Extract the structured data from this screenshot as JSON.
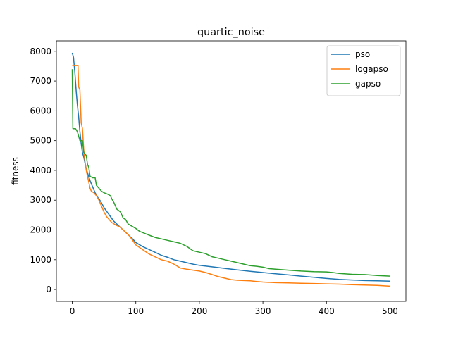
{
  "chart_data": {
    "type": "line",
    "title": "quartic_noise",
    "xlabel": "",
    "ylabel": "fitness",
    "xlim": [
      -25,
      525
    ],
    "ylim": [
      -400,
      8350
    ],
    "xticks": [
      0,
      100,
      200,
      300,
      400,
      500
    ],
    "yticks": [
      0,
      1000,
      2000,
      3000,
      4000,
      5000,
      6000,
      7000,
      8000
    ],
    "grid": false,
    "legend_position": "top-right",
    "series": [
      {
        "name": "pso",
        "color": "#1f77b4",
        "points": [
          [
            0,
            7950
          ],
          [
            2,
            7800
          ],
          [
            4,
            7300
          ],
          [
            6,
            6700
          ],
          [
            8,
            6200
          ],
          [
            10,
            5800
          ],
          [
            12,
            5300
          ],
          [
            14,
            4900
          ],
          [
            16,
            4600
          ],
          [
            18,
            4450
          ],
          [
            20,
            4250
          ],
          [
            22,
            4050
          ],
          [
            25,
            3850
          ],
          [
            28,
            3650
          ],
          [
            32,
            3450
          ],
          [
            36,
            3250
          ],
          [
            40,
            3100
          ],
          [
            45,
            2950
          ],
          [
            50,
            2750
          ],
          [
            55,
            2600
          ],
          [
            60,
            2450
          ],
          [
            65,
            2300
          ],
          [
            70,
            2200
          ],
          [
            75,
            2100
          ],
          [
            80,
            2000
          ],
          [
            85,
            1900
          ],
          [
            90,
            1800
          ],
          [
            95,
            1700
          ],
          [
            100,
            1580
          ],
          [
            110,
            1450
          ],
          [
            120,
            1350
          ],
          [
            130,
            1250
          ],
          [
            140,
            1150
          ],
          [
            150,
            1080
          ],
          [
            160,
            1000
          ],
          [
            170,
            950
          ],
          [
            180,
            900
          ],
          [
            190,
            850
          ],
          [
            200,
            810
          ],
          [
            220,
            760
          ],
          [
            240,
            710
          ],
          [
            260,
            660
          ],
          [
            280,
            610
          ],
          [
            300,
            570
          ],
          [
            320,
            530
          ],
          [
            340,
            490
          ],
          [
            360,
            450
          ],
          [
            380,
            410
          ],
          [
            400,
            370
          ],
          [
            420,
            340
          ],
          [
            440,
            320
          ],
          [
            460,
            300
          ],
          [
            480,
            290
          ],
          [
            500,
            280
          ]
        ]
      },
      {
        "name": "logapso",
        "color": "#ff7f0e",
        "points": [
          [
            0,
            7520
          ],
          [
            4,
            7520
          ],
          [
            9,
            7520
          ],
          [
            10,
            6800
          ],
          [
            12,
            6700
          ],
          [
            14,
            5600
          ],
          [
            16,
            5400
          ],
          [
            18,
            4700
          ],
          [
            20,
            4300
          ],
          [
            22,
            4000
          ],
          [
            24,
            3800
          ],
          [
            26,
            3600
          ],
          [
            28,
            3400
          ],
          [
            30,
            3300
          ],
          [
            34,
            3250
          ],
          [
            38,
            3150
          ],
          [
            42,
            3000
          ],
          [
            46,
            2800
          ],
          [
            50,
            2600
          ],
          [
            54,
            2450
          ],
          [
            58,
            2350
          ],
          [
            62,
            2250
          ],
          [
            66,
            2200
          ],
          [
            70,
            2150
          ],
          [
            75,
            2100
          ],
          [
            80,
            2000
          ],
          [
            85,
            1900
          ],
          [
            90,
            1800
          ],
          [
            95,
            1650
          ],
          [
            100,
            1500
          ],
          [
            110,
            1350
          ],
          [
            120,
            1200
          ],
          [
            130,
            1100
          ],
          [
            140,
            1000
          ],
          [
            150,
            950
          ],
          [
            160,
            850
          ],
          [
            170,
            720
          ],
          [
            180,
            680
          ],
          [
            190,
            650
          ],
          [
            200,
            620
          ],
          [
            210,
            570
          ],
          [
            220,
            500
          ],
          [
            230,
            430
          ],
          [
            240,
            380
          ],
          [
            250,
            330
          ],
          [
            260,
            310
          ],
          [
            270,
            300
          ],
          [
            280,
            290
          ],
          [
            290,
            270
          ],
          [
            300,
            250
          ],
          [
            320,
            230
          ],
          [
            340,
            220
          ],
          [
            360,
            210
          ],
          [
            380,
            200
          ],
          [
            400,
            190
          ],
          [
            420,
            180
          ],
          [
            440,
            160
          ],
          [
            460,
            150
          ],
          [
            480,
            140
          ],
          [
            500,
            110
          ]
        ]
      },
      {
        "name": "gapso",
        "color": "#2ca02c",
        "points": [
          [
            0,
            7400
          ],
          [
            1,
            5400
          ],
          [
            5,
            5400
          ],
          [
            8,
            5300
          ],
          [
            12,
            5000
          ],
          [
            16,
            5000
          ],
          [
            18,
            4600
          ],
          [
            22,
            4500
          ],
          [
            24,
            4200
          ],
          [
            26,
            4100
          ],
          [
            28,
            3800
          ],
          [
            32,
            3750
          ],
          [
            36,
            3750
          ],
          [
            38,
            3500
          ],
          [
            42,
            3400
          ],
          [
            46,
            3300
          ],
          [
            50,
            3250
          ],
          [
            56,
            3200
          ],
          [
            60,
            3150
          ],
          [
            62,
            3050
          ],
          [
            66,
            2900
          ],
          [
            70,
            2700
          ],
          [
            76,
            2600
          ],
          [
            80,
            2400
          ],
          [
            84,
            2350
          ],
          [
            88,
            2200
          ],
          [
            92,
            2150
          ],
          [
            96,
            2100
          ],
          [
            100,
            2050
          ],
          [
            106,
            1950
          ],
          [
            112,
            1900
          ],
          [
            118,
            1850
          ],
          [
            124,
            1800
          ],
          [
            130,
            1750
          ],
          [
            140,
            1700
          ],
          [
            150,
            1650
          ],
          [
            160,
            1600
          ],
          [
            170,
            1550
          ],
          [
            180,
            1450
          ],
          [
            190,
            1300
          ],
          [
            200,
            1250
          ],
          [
            210,
            1200
          ],
          [
            220,
            1100
          ],
          [
            230,
            1050
          ],
          [
            240,
            1000
          ],
          [
            250,
            950
          ],
          [
            260,
            900
          ],
          [
            270,
            850
          ],
          [
            280,
            800
          ],
          [
            290,
            780
          ],
          [
            300,
            750
          ],
          [
            310,
            700
          ],
          [
            320,
            680
          ],
          [
            340,
            650
          ],
          [
            360,
            620
          ],
          [
            380,
            600
          ],
          [
            400,
            590
          ],
          [
            410,
            570
          ],
          [
            420,
            540
          ],
          [
            440,
            510
          ],
          [
            460,
            500
          ],
          [
            480,
            470
          ],
          [
            500,
            450
          ]
        ]
      }
    ]
  }
}
